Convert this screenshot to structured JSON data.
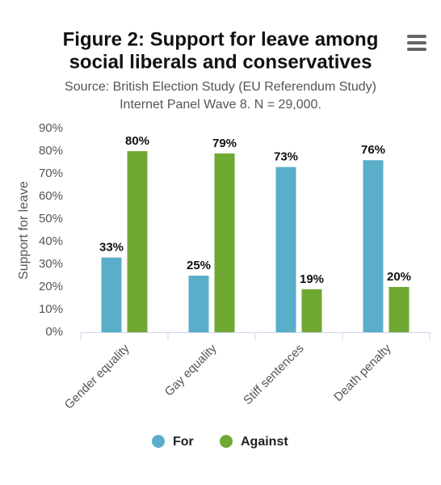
{
  "chart_data": {
    "type": "bar",
    "title": [
      "Figure 2: Support for leave among",
      "social liberals and conservatives"
    ],
    "subtitle": [
      "Source: British Election Study (EU Referendum Study)",
      "Internet Panel Wave 8. N = 29,000."
    ],
    "ylabel": "Support for leave",
    "categories": [
      "Gender equality",
      "Gay equality",
      "Stiff sentences",
      "Death penalty"
    ],
    "series": [
      {
        "name": "For",
        "color": "#5aaec9",
        "values": [
          33,
          25,
          73,
          76
        ],
        "value_labels": [
          "33%",
          "25%",
          "73%",
          "76%"
        ]
      },
      {
        "name": "Against",
        "color": "#6fa833",
        "values": [
          80,
          79,
          19,
          20
        ],
        "value_labels": [
          "80%",
          "79%",
          "19%",
          "20%"
        ]
      }
    ],
    "ylim": [
      0,
      90
    ],
    "yticks": [
      {
        "value": 0,
        "label": "0%"
      },
      {
        "value": 10,
        "label": "10%"
      },
      {
        "value": 20,
        "label": "20%"
      },
      {
        "value": 30,
        "label": "30%"
      },
      {
        "value": 40,
        "label": "40%"
      },
      {
        "value": 50,
        "label": "50%"
      },
      {
        "value": 60,
        "label": "60%"
      },
      {
        "value": 70,
        "label": "70%"
      },
      {
        "value": 80,
        "label": "80%"
      },
      {
        "value": 90,
        "label": "90%"
      }
    ],
    "grid": false,
    "legend": "bottom"
  }
}
